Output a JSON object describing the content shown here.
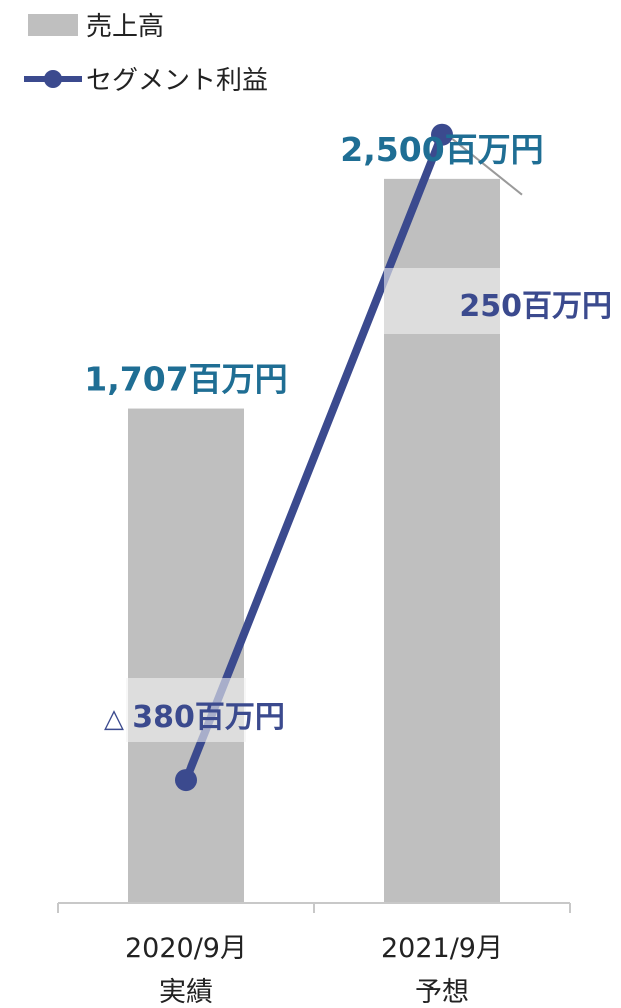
{
  "chart_data": {
    "type": "bar",
    "categories": [
      [
        "2020/9月",
        "実績"
      ],
      [
        "2021/9月",
        "予想"
      ]
    ],
    "series": [
      {
        "name": "売上高",
        "type": "bar",
        "values": [
          1707,
          2500
        ],
        "data_labels": [
          "1,707百万円",
          "2,500百万円"
        ]
      },
      {
        "name": "セグメント利益",
        "type": "line",
        "values": [
          -380,
          250
        ],
        "data_labels": [
          {
            "prefix": "△",
            "text": "380百万円"
          },
          {
            "prefix": "",
            "text": "250百万円"
          }
        ]
      }
    ],
    "bar_axis": {
      "min": 0,
      "max": 2900
    },
    "line_axis": {
      "min": -500,
      "max": 320
    },
    "legend_position": "top-left",
    "grid": false
  },
  "colors": {
    "bar": "#bfbfbf",
    "line": "#3b4a8e",
    "bar_label": "#1f6e94",
    "line_label": "#3b4a8e",
    "axis": "#c8c8c8",
    "label_bg": "#f2f2f2"
  }
}
